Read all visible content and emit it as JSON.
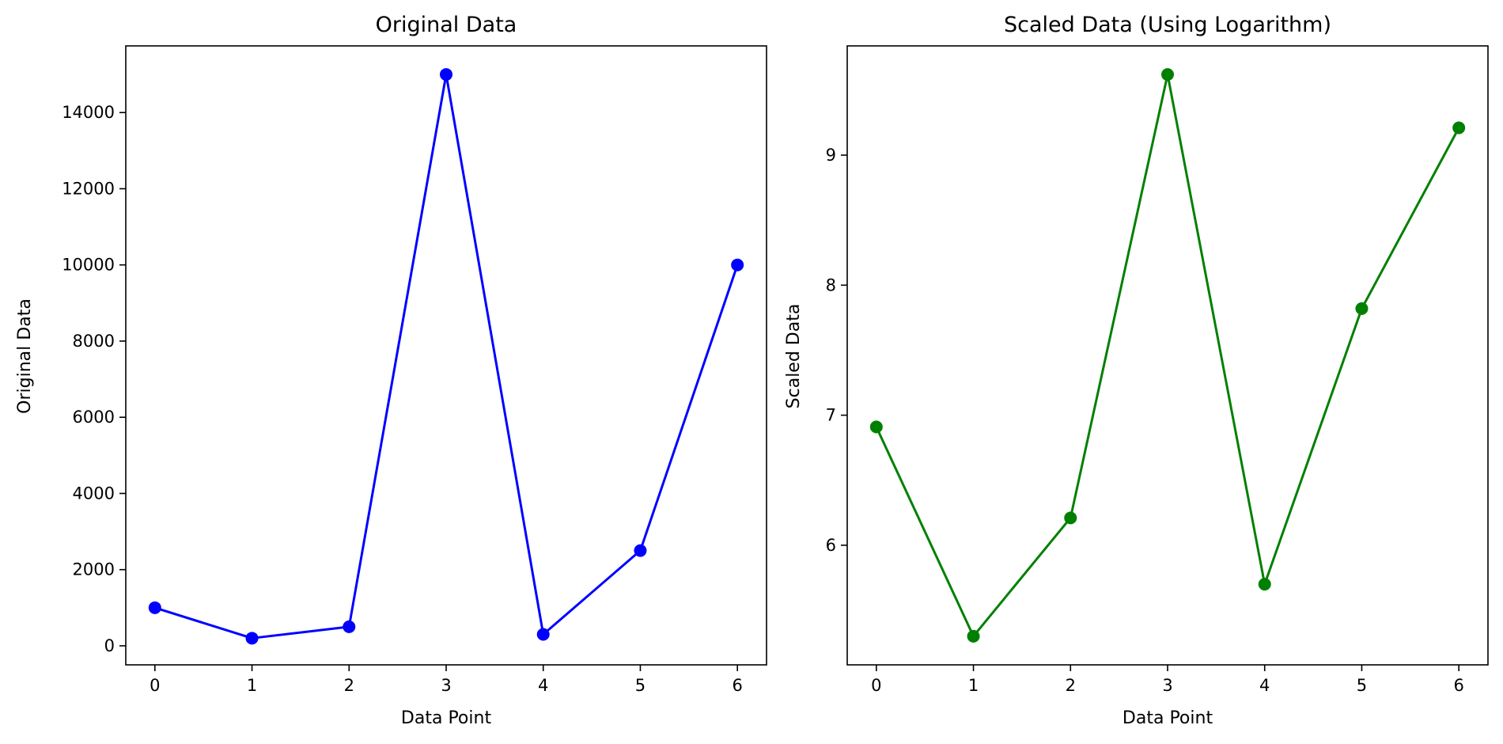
{
  "chart_data": [
    {
      "type": "line",
      "title": "Original Data",
      "xlabel": "Data Point",
      "ylabel": "Original Data",
      "x": [
        0,
        1,
        2,
        3,
        4,
        5,
        6
      ],
      "xticks": [
        0,
        1,
        2,
        3,
        4,
        5,
        6
      ],
      "yticks": [
        0,
        2000,
        4000,
        6000,
        8000,
        10000,
        12000,
        14000
      ],
      "xlim": [
        -0.3,
        6.3
      ],
      "ylim": [
        -500,
        15750
      ],
      "grid": false,
      "series": [
        {
          "values": [
            1000,
            200,
            500,
            15000,
            300,
            2500,
            10000
          ],
          "color": "#0000ff",
          "marker": "circle"
        }
      ]
    },
    {
      "type": "line",
      "title": "Scaled Data (Using Logarithm)",
      "xlabel": "Data Point",
      "ylabel": "Scaled Data",
      "x": [
        0,
        1,
        2,
        3,
        4,
        5,
        6
      ],
      "xticks": [
        0,
        1,
        2,
        3,
        4,
        5,
        6
      ],
      "yticks": [
        6,
        7,
        8,
        9
      ],
      "xlim": [
        -0.3,
        6.3
      ],
      "ylim": [
        5.08,
        9.84
      ],
      "grid": false,
      "series": [
        {
          "values": [
            6.91,
            5.3,
            6.21,
            9.62,
            5.7,
            7.82,
            9.21
          ],
          "color": "#008000",
          "marker": "circle"
        }
      ]
    }
  ]
}
